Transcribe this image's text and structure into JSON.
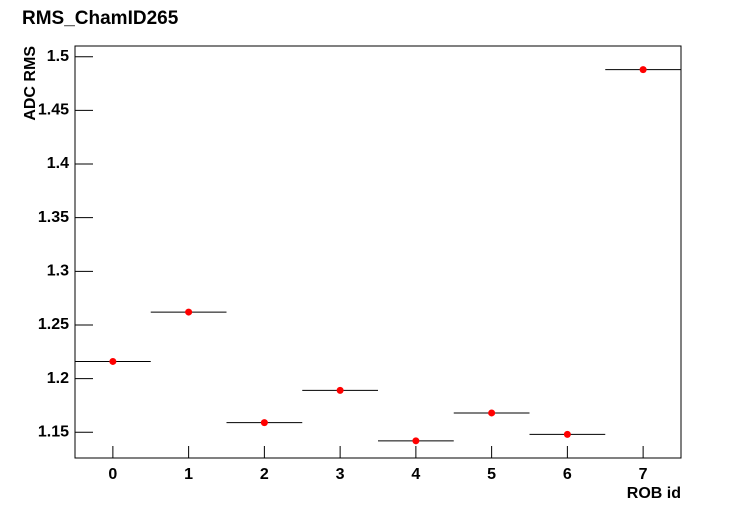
{
  "chart_data": {
    "type": "scatter",
    "title": "RMS_ChamID265",
    "x_label": "ROB id",
    "y_label": "ADC RMS",
    "x": [
      0,
      1,
      2,
      3,
      4,
      5,
      6,
      7
    ],
    "x_errors": [
      0.5,
      0.5,
      0.5,
      0.5,
      0.5,
      0.5,
      0.5,
      0.5
    ],
    "values": [
      1.216,
      1.262,
      1.159,
      1.189,
      1.142,
      1.168,
      1.148,
      1.488
    ],
    "color": "#ff0000",
    "xlim": [
      -0.5,
      7.5
    ],
    "xticks": [
      0,
      1,
      2,
      3,
      4,
      5,
      6,
      7
    ],
    "ylim": [
      1.126,
      1.51
    ],
    "yticks": [
      1.15,
      1.2,
      1.25,
      1.3,
      1.35,
      1.4,
      1.45,
      1.5
    ],
    "grid": false
  }
}
